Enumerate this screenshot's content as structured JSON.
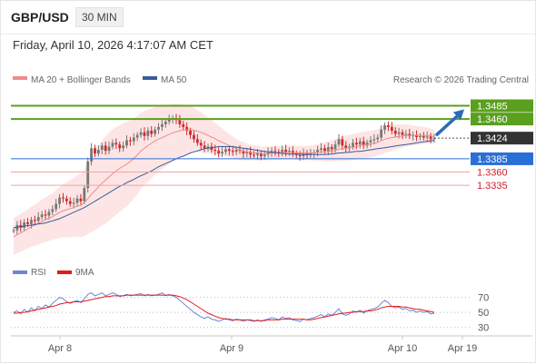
{
  "header": {
    "pair": "GBP/USD",
    "timeframe": "30 MIN"
  },
  "datetime": "Friday, April 10, 2026 4:17:07 AM CET",
  "legend": {
    "bb": "MA 20 + Bollinger Bands",
    "ma50": "MA 50",
    "credit": "Research © 2026 Trading Central",
    "rsi": "RSI",
    "ma9": "9MA"
  },
  "colors": {
    "candle_up": "#777777",
    "candle_down": "#cc2a2a",
    "bollinger_fill": "#fde0e0",
    "ma20": "#f08a8a",
    "ma50": "#3a5a9a",
    "resistance": "#5aa01e",
    "support": "#2a6fd6",
    "minor_support": "#f4a3a3",
    "last": "#333333",
    "rsi": "#6f86d6",
    "rsi_ma": "#e11b1b",
    "arrow": "#2a6ab8"
  },
  "chart_data": [
    {
      "type": "candlestick",
      "y_range": [
        1.32,
        1.3515
      ],
      "x_labels": [
        "Apr 8",
        "Apr 9",
        "Apr 10",
        "Apr 19"
      ],
      "levels": [
        {
          "value": 1.3485,
          "label": "1.3485",
          "kind": "resistance"
        },
        {
          "value": 1.346,
          "label": "1.3460",
          "kind": "resistance"
        },
        {
          "value": 1.3424,
          "label": "1.3424",
          "kind": "last"
        },
        {
          "value": 1.3385,
          "label": "1.3385",
          "kind": "support"
        },
        {
          "value": 1.336,
          "label": "1.3360",
          "kind": "minor_support"
        },
        {
          "value": 1.3335,
          "label": "1.3335",
          "kind": "minor_support"
        }
      ],
      "close": [
        1.325,
        1.326,
        1.3255,
        1.3265,
        1.3262,
        1.327,
        1.3268,
        1.3275,
        1.328,
        1.3278,
        1.3285,
        1.329,
        1.33,
        1.3312,
        1.331,
        1.3305,
        1.33,
        1.3302,
        1.331,
        1.3305,
        1.333,
        1.338,
        1.3405,
        1.3395,
        1.3402,
        1.341,
        1.34,
        1.3408,
        1.3415,
        1.3412,
        1.3405,
        1.341,
        1.342,
        1.3418,
        1.3425,
        1.343,
        1.3435,
        1.3428,
        1.3438,
        1.3432,
        1.344,
        1.3445,
        1.345,
        1.3455,
        1.346,
        1.3462,
        1.3458,
        1.345,
        1.3445,
        1.3438,
        1.343,
        1.3422,
        1.3415,
        1.341,
        1.3405,
        1.3408,
        1.3402,
        1.34,
        1.3395,
        1.3398,
        1.3403,
        1.34,
        1.3398,
        1.3402,
        1.34,
        1.3395,
        1.3398,
        1.3393,
        1.3392,
        1.3395,
        1.339,
        1.3393,
        1.3397,
        1.34,
        1.3398,
        1.3395,
        1.3402,
        1.3398,
        1.34,
        1.3395,
        1.3392,
        1.339,
        1.3395,
        1.3392,
        1.3395,
        1.3397,
        1.3402,
        1.3405,
        1.34,
        1.3407,
        1.3403,
        1.3412,
        1.3422,
        1.341,
        1.3405,
        1.3408,
        1.3415,
        1.3412,
        1.3418,
        1.341,
        1.3416,
        1.342,
        1.3422,
        1.3425,
        1.344,
        1.3448,
        1.3445,
        1.3438,
        1.3432,
        1.3435,
        1.343,
        1.3432,
        1.3428,
        1.343,
        1.3426,
        1.3428,
        1.3425,
        1.3427,
        1.3422,
        1.3424
      ],
      "ma20": [
        1.3238,
        1.3242,
        1.3245,
        1.3249,
        1.3253,
        1.3257,
        1.326,
        1.3263,
        1.3267,
        1.327,
        1.3273,
        1.3276,
        1.328,
        1.3284,
        1.3287,
        1.3289,
        1.3291,
        1.3293,
        1.3296,
        1.3297,
        1.3302,
        1.331,
        1.3318,
        1.3325,
        1.3332,
        1.3339,
        1.3345,
        1.3351,
        1.3357,
        1.3362,
        1.3367,
        1.3371,
        1.3375,
        1.338,
        1.3386,
        1.3392,
        1.34,
        1.3405,
        1.341,
        1.3414,
        1.3419,
        1.3422,
        1.3425,
        1.3428,
        1.3431,
        1.3434,
        1.3436,
        1.3438,
        1.3439,
        1.344,
        1.344,
        1.3439,
        1.3437,
        1.3435,
        1.3432,
        1.3429,
        1.3426,
        1.3423,
        1.3419,
        1.3416,
        1.3413,
        1.341,
        1.3407,
        1.3404,
        1.3401,
        1.3399,
        1.3398,
        1.3397,
        1.3396,
        1.3396,
        1.3395,
        1.3395,
        1.3395,
        1.3396,
        1.3396,
        1.3396,
        1.3397,
        1.3397,
        1.3397,
        1.3397,
        1.3396,
        1.3396,
        1.3396,
        1.3396,
        1.3396,
        1.3396,
        1.3397,
        1.3398,
        1.3398,
        1.3399,
        1.34,
        1.3401,
        1.3403,
        1.3404,
        1.3405,
        1.3406,
        1.3407,
        1.3408,
        1.341,
        1.3411,
        1.3412,
        1.3413,
        1.3414,
        1.3416,
        1.3419,
        1.3422,
        1.3424,
        1.3425,
        1.3426,
        1.3427,
        1.3428,
        1.3429,
        1.3429,
        1.3429,
        1.3429,
        1.3429,
        1.3429,
        1.3429,
        1.3428,
        1.3427
      ],
      "ma50": [
        1.3255,
        1.3256,
        1.3257,
        1.3258,
        1.3259,
        1.326,
        1.3261,
        1.3262,
        1.3263,
        1.3264,
        1.3266,
        1.3268,
        1.327,
        1.3272,
        1.3275,
        1.3278,
        1.3281,
        1.3284,
        1.3287,
        1.329,
        1.3293,
        1.3297,
        1.3301,
        1.3305,
        1.3309,
        1.3313,
        1.3317,
        1.3321,
        1.3325,
        1.3329,
        1.3333,
        1.3336,
        1.334,
        1.3343,
        1.3346,
        1.335,
        1.3353,
        1.3356,
        1.3359,
        1.3362,
        1.3366,
        1.337,
        1.3373,
        1.3376,
        1.3379,
        1.3382,
        1.3385,
        1.3388,
        1.339,
        1.3393,
        1.3396,
        1.3398,
        1.34,
        1.3402,
        1.3404,
        1.3405,
        1.3406,
        1.3407,
        1.3408,
        1.3408,
        1.3408,
        1.3408,
        1.3408,
        1.3407,
        1.3406,
        1.3405,
        1.3404,
        1.3403,
        1.3402,
        1.3401,
        1.34,
        1.3399,
        1.3398,
        1.3397,
        1.3396,
        1.3396,
        1.3395,
        1.3395,
        1.3394,
        1.3394,
        1.3394,
        1.3394,
        1.3393,
        1.3393,
        1.3393,
        1.3393,
        1.3393,
        1.3393,
        1.3393,
        1.3394,
        1.3394,
        1.3395,
        1.3396,
        1.3396,
        1.3397,
        1.3397,
        1.3398,
        1.3399,
        1.3399,
        1.34,
        1.3401,
        1.3402,
        1.3403,
        1.3404,
        1.3405,
        1.3406,
        1.3407,
        1.3408,
        1.3409,
        1.341,
        1.3411,
        1.3412,
        1.3413,
        1.3414,
        1.3415,
        1.3416,
        1.3417,
        1.3418,
        1.3419,
        1.342
      ],
      "bb_width": [
        0.0035,
        0.0035,
        0.0036,
        0.0036,
        0.0037,
        0.0038,
        0.0039,
        0.004,
        0.0041,
        0.0042,
        0.0043,
        0.0044,
        0.0046,
        0.0048,
        0.005,
        0.0052,
        0.0054,
        0.0056,
        0.0058,
        0.006,
        0.0063,
        0.0067,
        0.0071,
        0.0075,
        0.0078,
        0.008,
        0.0082,
        0.0083,
        0.0083,
        0.0083,
        0.0082,
        0.0081,
        0.008,
        0.0078,
        0.0076,
        0.0074,
        0.0072,
        0.007,
        0.0068,
        0.0066,
        0.0064,
        0.0062,
        0.006,
        0.0058,
        0.0056,
        0.0054,
        0.0052,
        0.005,
        0.0048,
        0.0046,
        0.0044,
        0.0042,
        0.004,
        0.0038,
        0.0036,
        0.0034,
        0.0032,
        0.003,
        0.0028,
        0.0026,
        0.0024,
        0.0022,
        0.002,
        0.0019,
        0.0018,
        0.0017,
        0.0016,
        0.0015,
        0.0014,
        0.0014,
        0.0013,
        0.0013,
        0.0013,
        0.0013,
        0.0013,
        0.0013,
        0.0013,
        0.0013,
        0.0013,
        0.0013,
        0.0013,
        0.0013,
        0.0013,
        0.0013,
        0.0014,
        0.0015,
        0.0016,
        0.0017,
        0.0018,
        0.0019,
        0.002,
        0.0021,
        0.0022,
        0.0023,
        0.0024,
        0.0024,
        0.0025,
        0.0025,
        0.0025,
        0.0025,
        0.0025,
        0.0025,
        0.0025,
        0.0025,
        0.0026,
        0.0026,
        0.0026,
        0.0025,
        0.0024,
        0.0023,
        0.0022,
        0.0021,
        0.002,
        0.0019,
        0.0018,
        0.0017,
        0.0016,
        0.0015,
        0.0014,
        0.0013
      ]
    },
    {
      "type": "line",
      "name": "RSI",
      "y_ticks": [
        70,
        50,
        30
      ],
      "rsi": [
        50,
        52,
        48,
        54,
        50,
        56,
        52,
        58,
        55,
        60,
        57,
        62,
        66,
        70,
        68,
        64,
        62,
        64,
        66,
        63,
        68,
        74,
        76,
        72,
        74,
        76,
        72,
        74,
        76,
        74,
        71,
        72,
        74,
        72,
        73,
        74,
        75,
        72,
        74,
        72,
        73,
        74,
        76,
        72,
        74,
        72,
        70,
        66,
        62,
        58,
        54,
        50,
        47,
        44,
        42,
        44,
        41,
        40,
        38,
        40,
        42,
        40,
        39,
        41,
        40,
        38,
        40,
        39,
        38,
        40,
        38,
        40,
        41,
        43,
        42,
        40,
        44,
        42,
        43,
        40,
        39,
        38,
        41,
        40,
        42,
        43,
        45,
        47,
        44,
        48,
        46,
        50,
        55,
        48,
        46,
        48,
        52,
        50,
        53,
        49,
        52,
        54,
        55,
        57,
        62,
        66,
        63,
        58,
        56,
        57,
        54,
        55,
        52,
        53,
        50,
        52,
        50,
        51,
        48,
        49
      ],
      "ma9": [
        49,
        49,
        50,
        50,
        51,
        52,
        53,
        54,
        55,
        56,
        57,
        58,
        59,
        61,
        62,
        63,
        63,
        64,
        64,
        64,
        65,
        66,
        67,
        68,
        69,
        70,
        71,
        71,
        72,
        72,
        72,
        72,
        73,
        73,
        73,
        73,
        73,
        73,
        73,
        73,
        73,
        73,
        73,
        73,
        73,
        73,
        72,
        71,
        69,
        67,
        64,
        61,
        58,
        55,
        52,
        49,
        47,
        45,
        43,
        42,
        41,
        41,
        40,
        40,
        40,
        40,
        40,
        40,
        39,
        39,
        39,
        39,
        40,
        40,
        40,
        40,
        41,
        41,
        41,
        41,
        41,
        41,
        41,
        40,
        40,
        41,
        42,
        43,
        44,
        45,
        46,
        47,
        48,
        49,
        49,
        50,
        50,
        51,
        51,
        51,
        52,
        52,
        53,
        54,
        56,
        57,
        58,
        58,
        58,
        58,
        57,
        57,
        56,
        55,
        54,
        54,
        53,
        52,
        51,
        50
      ]
    }
  ]
}
